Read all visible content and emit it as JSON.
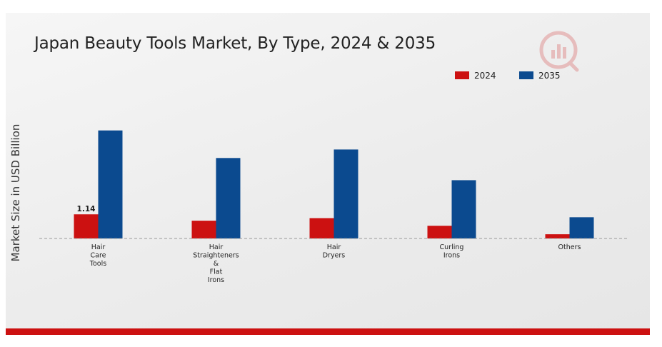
{
  "chart_data": {
    "type": "bar",
    "title": "Japan Beauty Tools Market, By Type, 2024 & 2035",
    "xlabel": "",
    "ylabel": "Market Size in USD Billion",
    "categories": [
      "Hair\nCare\nTools",
      "Hair\nStraighteners\n&\nFlat\nIrons",
      "Hair\nDryers",
      "Curling\nIrons",
      "Others"
    ],
    "series": [
      {
        "name": "2024",
        "values": [
          1.14,
          0.84,
          0.96,
          0.6,
          0.2
        ]
      },
      {
        "name": "2035",
        "values": [
          5.1,
          3.8,
          4.2,
          2.75,
          1.0
        ]
      }
    ],
    "data_labels": [
      {
        "series": 0,
        "index": 0,
        "text": "1.14"
      }
    ],
    "ylim": [
      0,
      6
    ],
    "grid": false,
    "legend": "top-right",
    "colors": {
      "2024": "#cc1111",
      "2035": "#0b4a8f",
      "baseline": "#999999",
      "accent_bar": "#cc1111"
    }
  },
  "logo": {
    "icon": "market-research-logo-icon"
  }
}
